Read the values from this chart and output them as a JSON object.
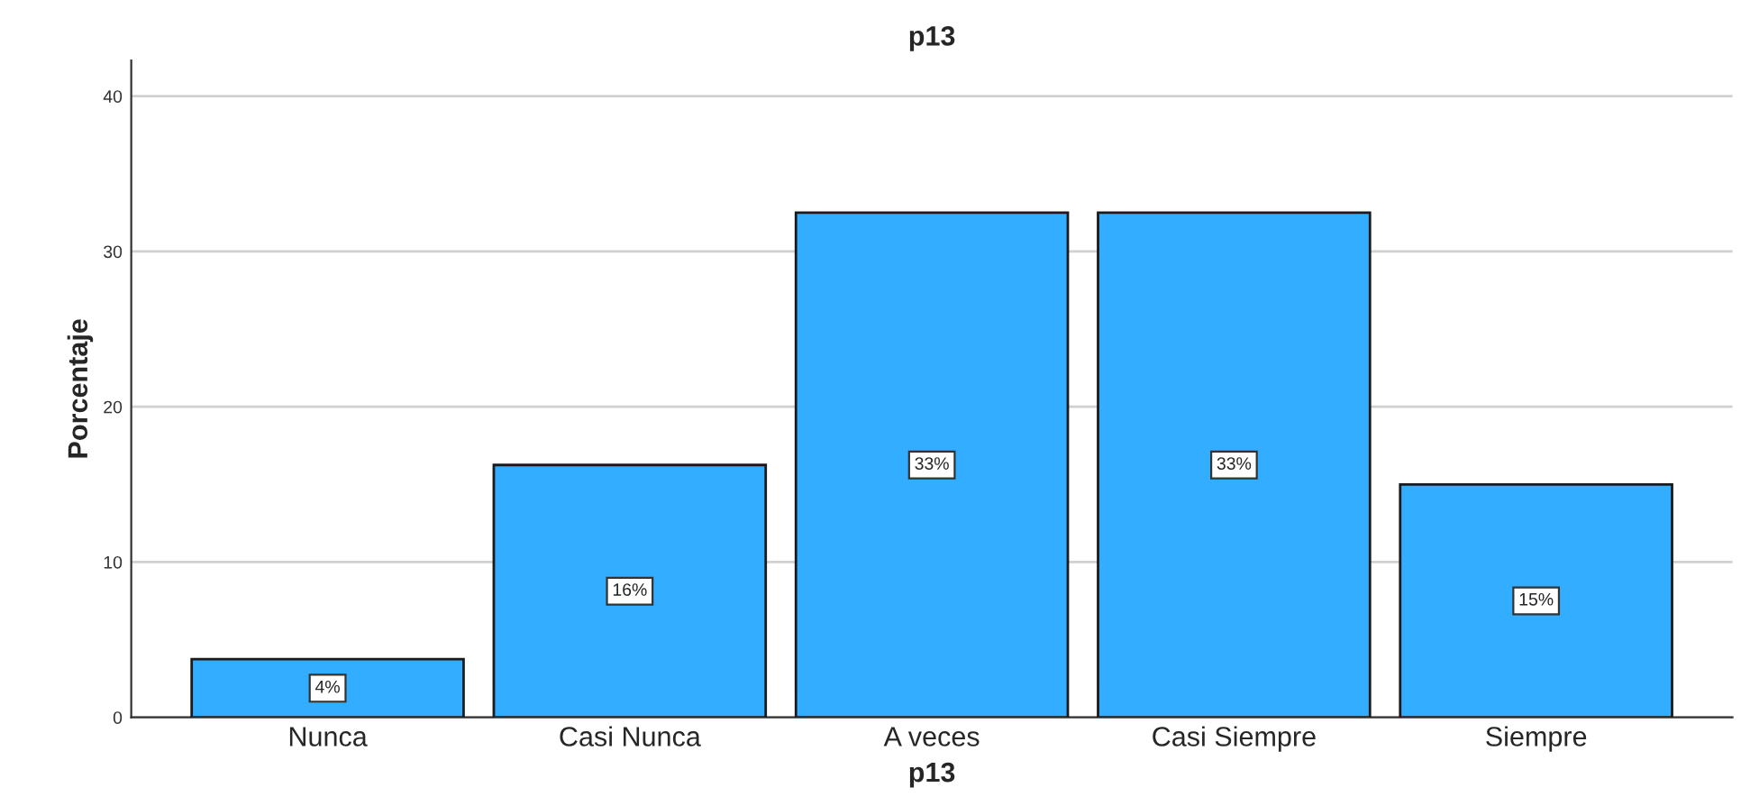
{
  "chart_data": {
    "type": "bar",
    "title": "p13",
    "xlabel": "p13",
    "ylabel": "Porcentaje",
    "categories": [
      "Nunca",
      "Casi Nunca",
      "A veces",
      "Casi Siempre",
      "Siempre"
    ],
    "values": [
      3.75,
      16.25,
      32.5,
      32.5,
      15
    ],
    "value_labels": [
      "4%",
      "16%",
      "33%",
      "33%",
      "15%"
    ],
    "color": "#33adff",
    "ylim": [
      0,
      42.3
    ],
    "yticks": [
      0,
      10,
      20,
      30,
      40
    ],
    "grid": "y"
  }
}
